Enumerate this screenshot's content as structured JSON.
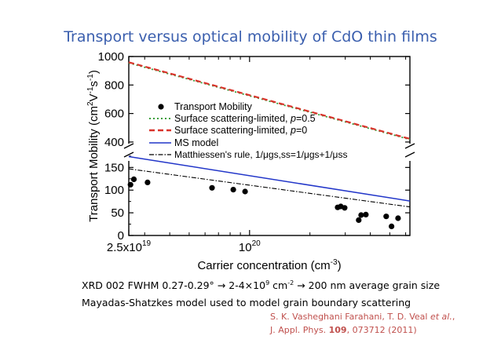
{
  "slide": {
    "title": "Transport versus optical mobility of CdO thin films",
    "note1": {
      "a": "XRD 002 FWHM 0.27-0.29°",
      "arrow1": "→",
      "b": " 2-4×10",
      "b_sup": "9",
      "c": " cm",
      "c_sup": "-2",
      "arrow2": "→",
      "d": " 200 nm average grain size"
    },
    "note2": "Mayadas-Shatzkes model used to model grain boundary scattering",
    "citation": {
      "authors_a": "S. K. Vasheghani Farahani, T. D. Veal ",
      "authors_etal": "et al.",
      "authors_end": ",",
      "journal": "J. Appl. Phys. ",
      "volume": "109",
      "pages": ", 073712 (2011)"
    }
  },
  "chart_data": {
    "type": "scatter",
    "xlabel": "Carrier concentration (cm",
    "xlabel_sup": "-3",
    "xlabel_end": ")",
    "ylabel": "Transport Mobility (cm",
    "ylabel_sup1": "2",
    "ylabel_mid": "V",
    "ylabel_sup2": "-1",
    "ylabel_mid2": "s",
    "ylabel_sup3": "-1",
    "ylabel_end": ")",
    "x_scale": "log",
    "x_range": [
      2.5e+19,
      6.3e+20
    ],
    "x_ticks": [
      {
        "value": 2.5e+19,
        "base": "2.5x10",
        "sup": "19"
      },
      {
        "value": 1e+20,
        "base": "10",
        "sup": "20"
      }
    ],
    "y_axis_broken": true,
    "y_lower_range": [
      0,
      180
    ],
    "y_upper_range": [
      350,
      1000
    ],
    "y_lower_ticks": [
      0,
      50,
      100,
      150
    ],
    "y_upper_ticks": [
      400,
      600,
      800,
      1000
    ],
    "legend_position": "top-left",
    "legend": [
      {
        "label": "Transport Mobility",
        "style": "dot"
      },
      {
        "label_a": "Surface scattering-limited, ",
        "label_p": "p",
        "label_b": "=0.5",
        "style": "dotted-green"
      },
      {
        "label_a": "Surface scattering-limited, ",
        "label_p": "p",
        "label_b": "=0",
        "style": "dashed-red"
      },
      {
        "label": "MS model",
        "style": "solid-blue"
      },
      {
        "label": "Matthiessen's rule, 1/μgs,ss=1/μgs+1/μss",
        "style": "dashdot-black"
      }
    ],
    "series": [
      {
        "name": "Transport Mobility",
        "kind": "points",
        "points": [
          [
            2.55e+19,
            112
          ],
          [
            2.65e+19,
            124
          ],
          [
            3.1e+19,
            117
          ],
          [
            6.5e+19,
            105
          ],
          [
            8.3e+19,
            101
          ],
          [
            9.5e+19,
            97
          ],
          [
            2.75e+20,
            62
          ],
          [
            2.85e+20,
            64
          ],
          [
            2.98e+20,
            61
          ],
          [
            3.5e+20,
            34
          ],
          [
            3.6e+20,
            45
          ],
          [
            3.8e+20,
            46
          ],
          [
            4.8e+20,
            42
          ],
          [
            5.1e+20,
            20
          ],
          [
            5.5e+20,
            38
          ]
        ]
      },
      {
        "name": "Surface scattering-limited, p=0.5",
        "kind": "line",
        "points": [
          [
            2.5e+19,
            955
          ],
          [
            6.3e+20,
            418
          ]
        ]
      },
      {
        "name": "Surface scattering-limited, p=0",
        "kind": "line",
        "points": [
          [
            2.5e+19,
            960
          ],
          [
            6.3e+20,
            422
          ]
        ]
      },
      {
        "name": "MS model",
        "kind": "line",
        "points": [
          [
            2.5e+19,
            174
          ],
          [
            6.3e+20,
            76
          ]
        ]
      },
      {
        "name": "Matthiessen's rule",
        "kind": "line",
        "points": [
          [
            2.5e+19,
            147
          ],
          [
            6.3e+20,
            63
          ]
        ]
      }
    ]
  }
}
